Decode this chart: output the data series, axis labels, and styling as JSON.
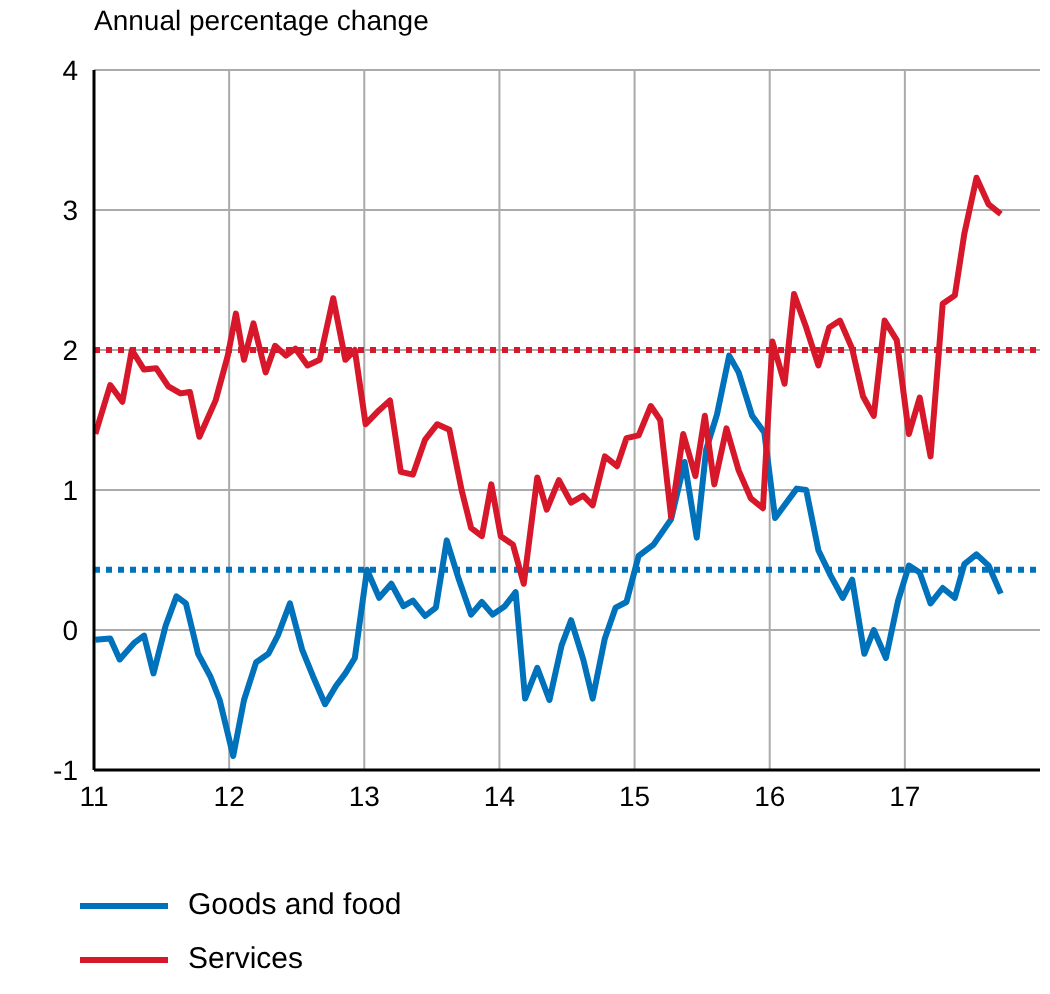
{
  "chart_data": {
    "type": "line",
    "ylabel": "Annual percentage change",
    "xlim": [
      11,
      18
    ],
    "xticks": [
      11,
      12,
      13,
      14,
      15,
      16,
      17
    ],
    "ylim": [
      -1,
      4
    ],
    "yticks": [
      -1,
      0,
      1,
      2,
      3,
      4
    ],
    "grid": true,
    "legend": "bottom",
    "marker": "none",
    "line_style": "solid",
    "ref_lines": [
      {
        "axis": "y",
        "value": 2,
        "color": "#d7182a",
        "line_style": "dotted"
      },
      {
        "axis": "y",
        "value": 0.43,
        "color": "#0072bb",
        "line_style": "dotted"
      }
    ],
    "series": [
      {
        "name": "Goods and food",
        "color": "#0072bb",
        "x": [
          11.01,
          11.12,
          11.19,
          11.3,
          11.37,
          11.44,
          11.53,
          11.61,
          11.68,
          11.77,
          11.86,
          11.93,
          12.03,
          12.11,
          12.2,
          12.29,
          12.36,
          12.45,
          12.54,
          12.62,
          12.71,
          12.79,
          12.86,
          12.93,
          13.02,
          13.11,
          13.2,
          13.29,
          13.36,
          13.45,
          13.53,
          13.61,
          13.7,
          13.79,
          13.87,
          13.95,
          14.04,
          14.12,
          14.19,
          14.28,
          14.37,
          14.46,
          14.53,
          14.62,
          14.69,
          14.78,
          14.86,
          14.94,
          15.03,
          15.14,
          15.27,
          15.37,
          15.46,
          15.53,
          15.61,
          15.7,
          15.77,
          15.87,
          15.96,
          16.04,
          16.2,
          16.27,
          16.36,
          16.45,
          16.54,
          16.61,
          16.7,
          16.77,
          16.86,
          16.95,
          17.03,
          17.11,
          17.19,
          17.28,
          17.37,
          17.44,
          17.53,
          17.62,
          17.71
        ],
        "values": [
          -0.07,
          -0.06,
          -0.21,
          -0.09,
          -0.04,
          -0.31,
          0.03,
          0.24,
          0.19,
          -0.17,
          -0.33,
          -0.5,
          -0.9,
          -0.5,
          -0.23,
          -0.17,
          -0.04,
          0.19,
          -0.14,
          -0.33,
          -0.53,
          -0.4,
          -0.31,
          -0.2,
          0.43,
          0.23,
          0.33,
          0.17,
          0.21,
          0.1,
          0.16,
          0.64,
          0.36,
          0.11,
          0.2,
          0.11,
          0.17,
          0.27,
          -0.49,
          -0.27,
          -0.5,
          -0.11,
          0.07,
          -0.21,
          -0.49,
          -0.06,
          0.16,
          0.2,
          0.53,
          0.61,
          0.79,
          1.2,
          0.66,
          1.29,
          1.54,
          1.96,
          1.84,
          1.53,
          1.41,
          0.8,
          1.01,
          1.0,
          0.57,
          0.39,
          0.23,
          0.36,
          -0.17,
          0.0,
          -0.2,
          0.21,
          0.46,
          0.41,
          0.19,
          0.3,
          0.23,
          0.47,
          0.54,
          0.46,
          0.26
        ]
      },
      {
        "name": "Services",
        "color": "#d7182a",
        "x": [
          11.01,
          11.12,
          11.21,
          11.28,
          11.37,
          11.46,
          11.55,
          11.64,
          11.71,
          11.78,
          11.9,
          11.99,
          12.05,
          12.11,
          12.18,
          12.27,
          12.34,
          12.42,
          12.49,
          12.58,
          12.67,
          12.77,
          12.86,
          12.93,
          13.01,
          13.11,
          13.19,
          13.27,
          13.36,
          13.45,
          13.54,
          13.63,
          13.72,
          13.79,
          13.87,
          13.94,
          14.01,
          14.1,
          14.18,
          14.28,
          14.35,
          14.44,
          14.53,
          14.62,
          14.69,
          14.78,
          14.87,
          14.94,
          15.03,
          15.12,
          15.19,
          15.27,
          15.36,
          15.45,
          15.52,
          15.59,
          15.68,
          15.77,
          15.86,
          15.95,
          16.02,
          16.11,
          16.18,
          16.27,
          16.36,
          16.44,
          16.52,
          16.61,
          16.69,
          16.77,
          16.85,
          16.94,
          17.03,
          17.11,
          17.19,
          17.28,
          17.37,
          17.44,
          17.53,
          17.62,
          17.71
        ],
        "values": [
          1.4,
          1.75,
          1.63,
          2.0,
          1.86,
          1.87,
          1.74,
          1.69,
          1.7,
          1.38,
          1.64,
          1.96,
          2.26,
          1.93,
          2.19,
          1.84,
          2.03,
          1.96,
          2.01,
          1.89,
          1.93,
          2.37,
          1.93,
          2.0,
          1.47,
          1.57,
          1.64,
          1.13,
          1.11,
          1.36,
          1.47,
          1.43,
          1.0,
          0.73,
          0.67,
          1.04,
          0.67,
          0.61,
          0.33,
          1.09,
          0.86,
          1.07,
          0.91,
          0.96,
          0.89,
          1.24,
          1.17,
          1.37,
          1.39,
          1.6,
          1.5,
          0.81,
          1.4,
          1.1,
          1.53,
          1.04,
          1.44,
          1.14,
          0.94,
          0.87,
          2.06,
          1.76,
          2.4,
          2.16,
          1.89,
          2.16,
          2.21,
          2.01,
          1.67,
          1.53,
          2.21,
          2.07,
          1.4,
          1.66,
          1.24,
          2.33,
          2.39,
          2.83,
          3.23,
          3.04,
          2.97
        ]
      }
    ]
  }
}
